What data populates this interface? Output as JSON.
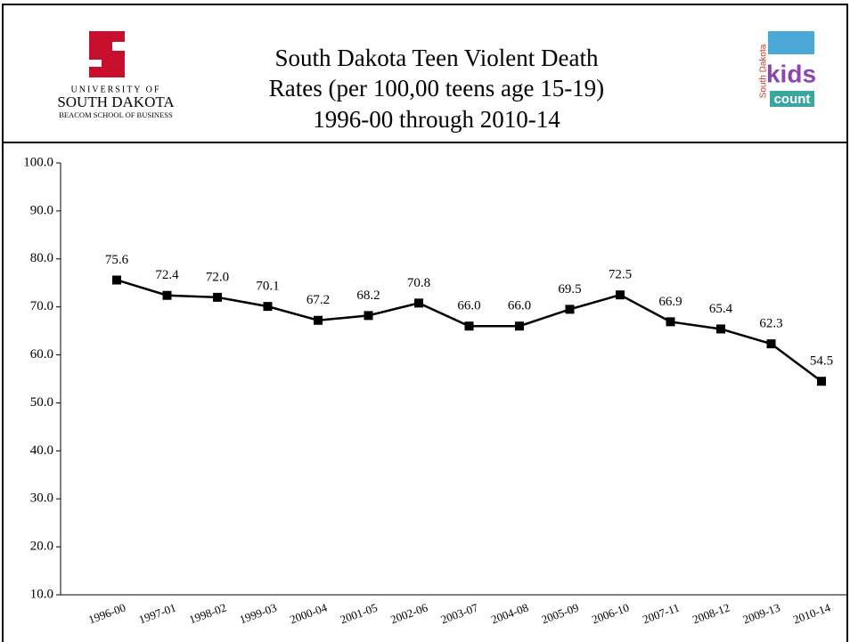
{
  "header": {
    "left_logo": [
      "UNIVERSITY OF",
      "SOUTH DAKOTA",
      "BEACOM SCHOOL OF BUSINESS"
    ],
    "right_logo": [
      "South Dakota",
      "kids",
      "count"
    ]
  },
  "chart_data": {
    "type": "line",
    "title": [
      "South Dakota Teen Violent Death",
      "Rates (per 100,00 teens age 15-19)",
      "1996-00 through 2010-14"
    ],
    "categories": [
      "1996-00",
      "1997-01",
      "1998-02",
      "1999-03",
      "2000-04",
      "2001-05",
      "2002-06",
      "2003-07",
      "2004-08",
      "2005-09",
      "2006-10",
      "2007-11",
      "2008-12",
      "2009-13",
      "2010-14"
    ],
    "values": [
      75.6,
      72.4,
      72.0,
      70.1,
      67.2,
      68.2,
      70.8,
      66.0,
      66.0,
      69.5,
      72.5,
      66.9,
      65.4,
      62.3,
      54.5
    ],
    "value_labels": [
      "75.6",
      "72.4",
      "72.0",
      "70.1",
      "67.2",
      "68.2",
      "70.8",
      "66.0",
      "66.0",
      "69.5",
      "72.5",
      "66.9",
      "65.4",
      "62.3",
      "54.5"
    ],
    "color": "#000000",
    "ylim": [
      10,
      100
    ],
    "yticks": [
      {
        "value": 10,
        "label": "10.0"
      },
      {
        "value": 20,
        "label": "20.0"
      },
      {
        "value": 30,
        "label": "30.0"
      },
      {
        "value": 40,
        "label": "40.0"
      },
      {
        "value": 50,
        "label": "50.0"
      },
      {
        "value": 60,
        "label": "60.0"
      },
      {
        "value": 70,
        "label": "70.0"
      },
      {
        "value": 80,
        "label": "80.0"
      },
      {
        "value": 90,
        "label": "90.0"
      },
      {
        "value": 100,
        "label": "100.0"
      }
    ],
    "grid": false
  }
}
